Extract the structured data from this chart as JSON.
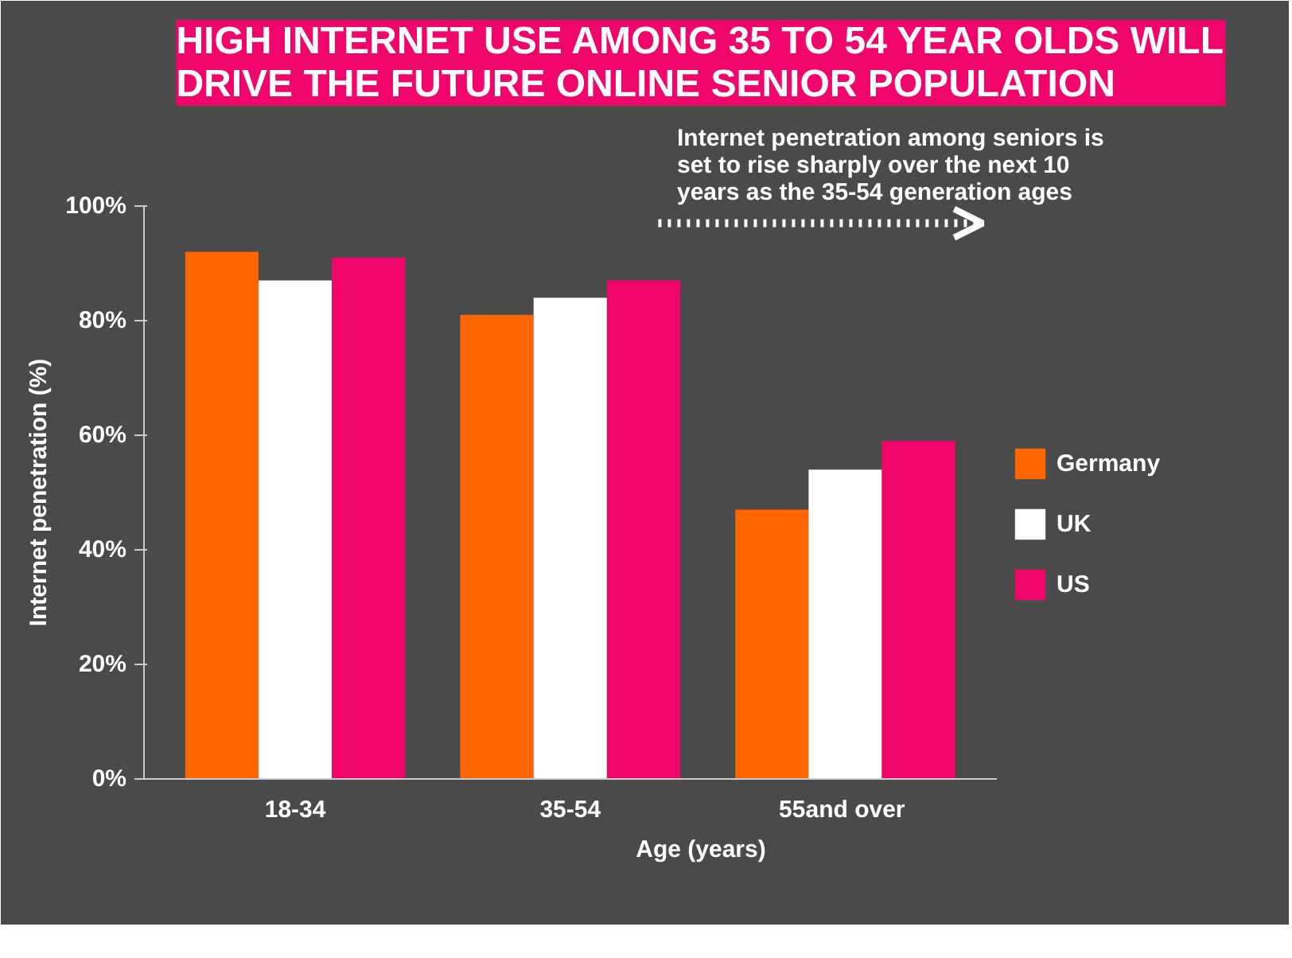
{
  "chart_data": {
    "type": "bar",
    "title": "HIGH INTERNET USE AMONG 35 TO 54 YEAR OLDS WILL DRIVE THE FUTURE ONLINE SENIOR POPULATION",
    "xlabel": "Age (years)",
    "ylabel": "Internet penetration (%)",
    "categories": [
      "18-34",
      "35-54",
      "55and  over"
    ],
    "series": [
      {
        "name": "Germany",
        "color": "#ff6600",
        "values": [
          92,
          81,
          47
        ]
      },
      {
        "name": "UK",
        "color": "#ffffff",
        "values": [
          87,
          84,
          54
        ]
      },
      {
        "name": "US",
        "color": "#f0066a",
        "values": [
          91,
          87,
          59
        ]
      }
    ],
    "ylim": [
      0,
      100
    ],
    "yticks": [
      {
        "value": 0,
        "label": "0%"
      },
      {
        "value": 20,
        "label": "20%"
      },
      {
        "value": 40,
        "label": "40%"
      },
      {
        "value": 60,
        "label": "60%"
      },
      {
        "value": 80,
        "label": "80%"
      },
      {
        "value": 100,
        "label": "100%"
      }
    ],
    "annotations": [
      "Internet penetration among seniors is set to rise sharply over the next 10 years as the 35-54 generation ages"
    ],
    "grid": false,
    "legend": "right"
  }
}
